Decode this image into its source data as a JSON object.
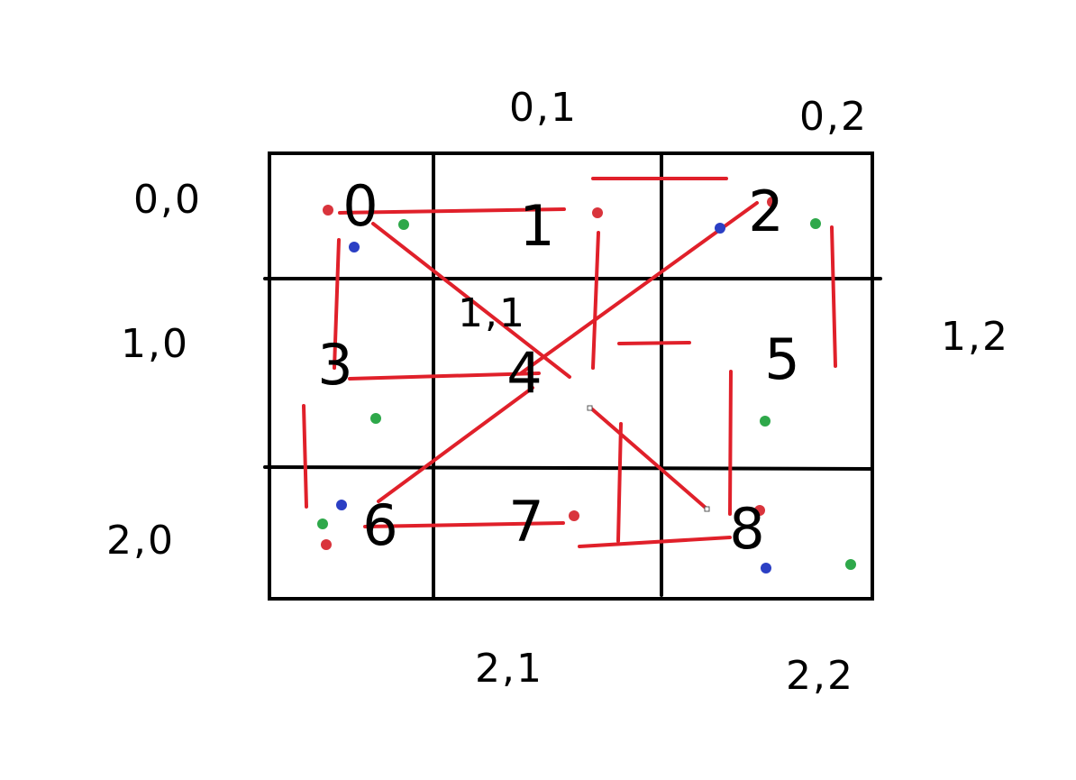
{
  "colors": {
    "grid": "#000000",
    "connections": "#e0202a",
    "dot_red": "#d9343c",
    "dot_green": "#2ea84a",
    "dot_blue": "#2b3fc4",
    "background": "#ffffff"
  },
  "coordinate_labels": {
    "c00": "0,0",
    "c01": "0,1",
    "c02": "0,2",
    "c10": "1,0",
    "c11": "1,1",
    "c12": "1,2",
    "c20": "2,0",
    "c21": "2,1",
    "c22": "2,2"
  },
  "cell_numbers": {
    "n0": "0",
    "n1": "1",
    "n2": "2",
    "n3": "3",
    "n4": "4",
    "n5": "5",
    "n6": "6",
    "n7": "7",
    "n8": "8"
  },
  "dot_colors": [
    "red",
    "green",
    "blue"
  ]
}
